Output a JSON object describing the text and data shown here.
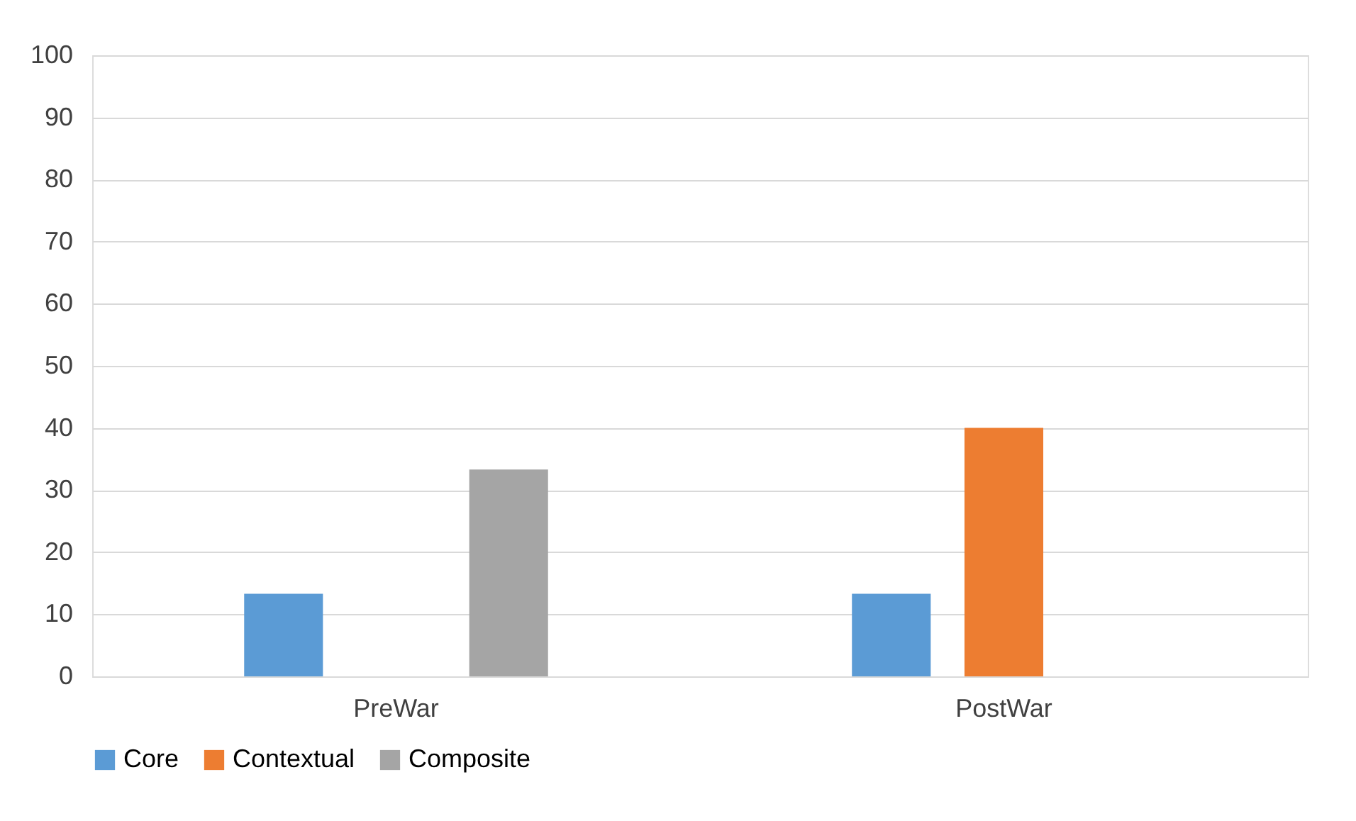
{
  "chart_data": {
    "type": "bar",
    "categories": [
      "PreWar",
      "PostWar"
    ],
    "series": [
      {
        "name": "Core",
        "color": "#5b9bd5",
        "values": [
          13.3,
          13.3
        ]
      },
      {
        "name": "Contextual",
        "color": "#ed7d31",
        "values": [
          0,
          40
        ]
      },
      {
        "name": "Composite",
        "color": "#a5a5a5",
        "values": [
          33.3,
          0
        ]
      }
    ],
    "ylim": [
      0,
      100
    ],
    "yticks": [
      0,
      10,
      20,
      30,
      40,
      50,
      60,
      70,
      80,
      90,
      100
    ],
    "grid": "y",
    "legend": "bottom"
  }
}
